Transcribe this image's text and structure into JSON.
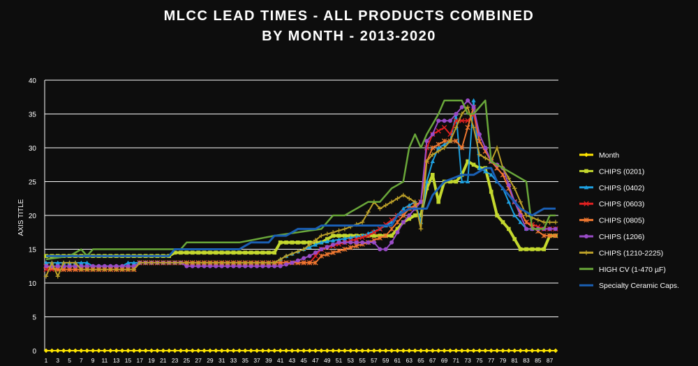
{
  "chart_data": {
    "type": "line",
    "title": "MLCC LEAD TIMES  - ALL PRODUCTS COMBINED",
    "subtitle": "BY MONTH - 2013-2020",
    "ylabel": "AXIS TITLE",
    "xlabel": "",
    "ylim": [
      0,
      40
    ],
    "yticks": [
      0,
      5,
      10,
      15,
      20,
      25,
      30,
      35,
      40
    ],
    "x_range": [
      1,
      88
    ],
    "xtick_labels": [
      1,
      3,
      5,
      7,
      9,
      11,
      13,
      15,
      17,
      19,
      21,
      23,
      25,
      27,
      29,
      31,
      33,
      35,
      37,
      39,
      41,
      43,
      45,
      47,
      49,
      51,
      53,
      55,
      57,
      59,
      61,
      63,
      65,
      67,
      69,
      71,
      73,
      75,
      77,
      79,
      81,
      83,
      85,
      87
    ],
    "grid": true,
    "legend_position": "right",
    "series": [
      {
        "name": "Month",
        "color": "#ffe600",
        "marker": "diamond",
        "points": [
          [
            1,
            0
          ],
          [
            88,
            0
          ]
        ]
      },
      {
        "name": "CHIPS (0201)",
        "color": "#c4d82e",
        "marker": "square",
        "points": [
          [
            1,
            14
          ],
          [
            22,
            14
          ],
          [
            23,
            14.5
          ],
          [
            40,
            14.5
          ],
          [
            41,
            16
          ],
          [
            48,
            16
          ],
          [
            50,
            17
          ],
          [
            60,
            17
          ],
          [
            62,
            19
          ],
          [
            64,
            20
          ],
          [
            65,
            20
          ],
          [
            66,
            24
          ],
          [
            67,
            26
          ],
          [
            68,
            22
          ],
          [
            69,
            25
          ],
          [
            71,
            25
          ],
          [
            72,
            26
          ],
          [
            73,
            28
          ],
          [
            75,
            27
          ],
          [
            76,
            27
          ],
          [
            78,
            20
          ],
          [
            80,
            18
          ],
          [
            82,
            15
          ],
          [
            86,
            15
          ],
          [
            87,
            17
          ],
          [
            88,
            17
          ]
        ]
      },
      {
        "name": "CHIPS (0402)",
        "color": "#1ea0e0",
        "marker": "triangle",
        "points": [
          [
            1,
            13
          ],
          [
            8,
            13
          ],
          [
            9,
            12.5
          ],
          [
            14,
            12.5
          ],
          [
            15,
            13
          ],
          [
            40,
            13
          ],
          [
            42,
            14
          ],
          [
            45,
            15
          ],
          [
            48,
            16
          ],
          [
            55,
            17
          ],
          [
            58,
            18
          ],
          [
            60,
            19
          ],
          [
            62,
            21
          ],
          [
            64,
            22
          ],
          [
            65,
            19
          ],
          [
            66,
            25
          ],
          [
            67,
            28
          ],
          [
            68,
            30
          ],
          [
            70,
            31
          ],
          [
            71,
            35
          ],
          [
            72,
            25
          ],
          [
            73,
            25
          ],
          [
            74,
            37
          ],
          [
            75,
            27
          ],
          [
            77,
            26
          ],
          [
            79,
            24
          ],
          [
            81,
            20
          ],
          [
            83,
            18
          ],
          [
            86,
            18
          ],
          [
            87,
            18
          ],
          [
            88,
            18
          ]
        ]
      },
      {
        "name": "CHIPS (0603)",
        "color": "#e02020",
        "marker": "x",
        "points": [
          [
            1,
            12
          ],
          [
            16,
            12
          ],
          [
            17,
            13
          ],
          [
            40,
            13
          ],
          [
            42,
            13
          ],
          [
            46,
            13
          ],
          [
            48,
            15
          ],
          [
            52,
            16
          ],
          [
            56,
            17
          ],
          [
            58,
            18
          ],
          [
            61,
            20
          ],
          [
            63,
            21
          ],
          [
            65,
            22
          ],
          [
            66,
            30
          ],
          [
            67,
            32
          ],
          [
            69,
            33
          ],
          [
            70,
            32
          ],
          [
            71,
            34
          ],
          [
            73,
            34
          ],
          [
            74,
            35
          ],
          [
            75,
            31
          ],
          [
            77,
            28
          ],
          [
            79,
            26
          ],
          [
            81,
            22
          ],
          [
            83,
            19
          ],
          [
            86,
            18
          ],
          [
            88,
            18
          ]
        ]
      },
      {
        "name": "CHIPS (0805)",
        "color": "#f07830",
        "marker": "asterisk",
        "points": [
          [
            1,
            12.5
          ],
          [
            3,
            12
          ],
          [
            16,
            12
          ],
          [
            17,
            13
          ],
          [
            40,
            13
          ],
          [
            42,
            13
          ],
          [
            47,
            13
          ],
          [
            48,
            14
          ],
          [
            52,
            15
          ],
          [
            56,
            16
          ],
          [
            59,
            17
          ],
          [
            61,
            19
          ],
          [
            63,
            21
          ],
          [
            65,
            22
          ],
          [
            66,
            28
          ],
          [
            67,
            30
          ],
          [
            69,
            31
          ],
          [
            71,
            31
          ],
          [
            72,
            30
          ],
          [
            74,
            36
          ],
          [
            75,
            31
          ],
          [
            77,
            28
          ],
          [
            79,
            26
          ],
          [
            81,
            22
          ],
          [
            83,
            19
          ],
          [
            86,
            17
          ],
          [
            88,
            17
          ]
        ]
      },
      {
        "name": "CHIPS (1206)",
        "color": "#9a4cc8",
        "marker": "circle",
        "points": [
          [
            1,
            12.5
          ],
          [
            16,
            12.5
          ],
          [
            17,
            13
          ],
          [
            24,
            13
          ],
          [
            25,
            12.5
          ],
          [
            41,
            12.5
          ],
          [
            43,
            13
          ],
          [
            46,
            14
          ],
          [
            48,
            15
          ],
          [
            51,
            16
          ],
          [
            55,
            16
          ],
          [
            57,
            16
          ],
          [
            58,
            15
          ],
          [
            59,
            15
          ],
          [
            60,
            16
          ],
          [
            62,
            19
          ],
          [
            64,
            21
          ],
          [
            65,
            22
          ],
          [
            66,
            31
          ],
          [
            67,
            32
          ],
          [
            68,
            34
          ],
          [
            70,
            34
          ],
          [
            72,
            36
          ],
          [
            73,
            37
          ],
          [
            74,
            36
          ],
          [
            75,
            32
          ],
          [
            77,
            28
          ],
          [
            79,
            27
          ],
          [
            81,
            22
          ],
          [
            83,
            18
          ],
          [
            86,
            18
          ],
          [
            88,
            18
          ]
        ]
      },
      {
        "name": "CHIPS (1210-2225)",
        "color": "#bca028",
        "marker": "plus",
        "points": [
          [
            1,
            11
          ],
          [
            2,
            13
          ],
          [
            3,
            11
          ],
          [
            4,
            13
          ],
          [
            6,
            13
          ],
          [
            7,
            12
          ],
          [
            16,
            12
          ],
          [
            17,
            13
          ],
          [
            40,
            13
          ],
          [
            42,
            14
          ],
          [
            45,
            15
          ],
          [
            48,
            17
          ],
          [
            52,
            18
          ],
          [
            55,
            19
          ],
          [
            57,
            22
          ],
          [
            58,
            21
          ],
          [
            60,
            22
          ],
          [
            62,
            23
          ],
          [
            64,
            22
          ],
          [
            65,
            18
          ],
          [
            66,
            28
          ],
          [
            67,
            29
          ],
          [
            69,
            30
          ],
          [
            70,
            31
          ],
          [
            72,
            35
          ],
          [
            73,
            36
          ],
          [
            74,
            33
          ],
          [
            75,
            29
          ],
          [
            77,
            28
          ],
          [
            78,
            30
          ],
          [
            79,
            27
          ],
          [
            81,
            24
          ],
          [
            83,
            20
          ],
          [
            86,
            19
          ],
          [
            88,
            19
          ]
        ]
      },
      {
        "name": "HIGH CV (1-470 µF)",
        "color": "#6aa83a",
        "marker": "none",
        "points": [
          [
            1,
            13.5
          ],
          [
            5,
            14
          ],
          [
            7,
            15
          ],
          [
            8,
            14
          ],
          [
            9,
            15
          ],
          [
            24,
            15
          ],
          [
            25,
            16
          ],
          [
            34,
            16
          ],
          [
            40,
            17
          ],
          [
            48,
            18
          ],
          [
            50,
            20
          ],
          [
            52,
            20
          ],
          [
            54,
            21
          ],
          [
            56,
            22
          ],
          [
            58,
            22
          ],
          [
            60,
            24
          ],
          [
            62,
            25
          ],
          [
            63,
            30
          ],
          [
            64,
            32
          ],
          [
            65,
            30
          ],
          [
            66,
            32
          ],
          [
            68,
            35
          ],
          [
            69,
            37
          ],
          [
            72,
            37
          ],
          [
            73,
            35
          ],
          [
            74,
            35
          ],
          [
            76,
            37
          ],
          [
            77,
            28
          ],
          [
            79,
            27
          ],
          [
            81,
            26
          ],
          [
            83,
            25
          ],
          [
            84,
            18
          ],
          [
            86,
            18
          ],
          [
            87,
            20
          ],
          [
            88,
            20
          ]
        ]
      },
      {
        "name": "Specialty Ceramic Caps.",
        "color": "#1a5fb4",
        "marker": "none",
        "points": [
          [
            1,
            14
          ],
          [
            22,
            14
          ],
          [
            23,
            15
          ],
          [
            34,
            15
          ],
          [
            36,
            16
          ],
          [
            39,
            16
          ],
          [
            40,
            17
          ],
          [
            42,
            17
          ],
          [
            44,
            18
          ],
          [
            47,
            18
          ],
          [
            48,
            18.5
          ],
          [
            60,
            18.5
          ],
          [
            61,
            20
          ],
          [
            63,
            21
          ],
          [
            65,
            21
          ],
          [
            66,
            21
          ],
          [
            67,
            23
          ],
          [
            69,
            25
          ],
          [
            72,
            26
          ],
          [
            74,
            26
          ],
          [
            76,
            27
          ],
          [
            77,
            27
          ],
          [
            78,
            25
          ],
          [
            79,
            24
          ],
          [
            80,
            23
          ],
          [
            82,
            21
          ],
          [
            84,
            20
          ],
          [
            86,
            21
          ],
          [
            88,
            21
          ]
        ]
      }
    ]
  }
}
